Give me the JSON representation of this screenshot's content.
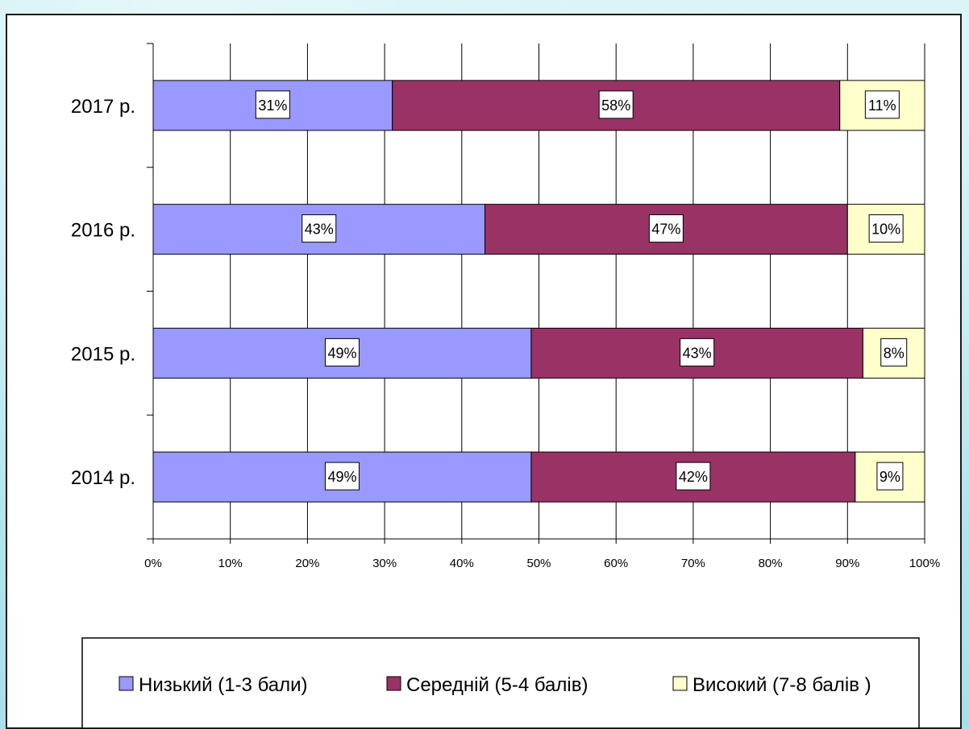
{
  "chart_data": {
    "type": "bar",
    "orientation": "horizontal",
    "stacked": "percent",
    "categories": [
      "2017 р.",
      "2016 р.",
      "2015 р.",
      "2014 р."
    ],
    "series": [
      {
        "name": "Низький (1-3 бали)",
        "color": "#9999ff",
        "values": [
          31,
          43,
          49,
          49
        ],
        "labels": [
          "31%",
          "43%",
          "49%",
          "49%"
        ]
      },
      {
        "name": "Середній (5-4 балів)",
        "color": "#993366",
        "values": [
          58,
          47,
          43,
          42
        ],
        "labels": [
          "58%",
          "47%",
          "43%",
          "42%"
        ]
      },
      {
        "name": "Високий (7-8 балів )",
        "color": "#ffffcc",
        "values": [
          11,
          10,
          8,
          9
        ],
        "labels": [
          "11%",
          "10%",
          "8%",
          "9%"
        ]
      }
    ],
    "xlim": [
      0,
      100
    ],
    "xticks": [
      "0%",
      "10%",
      "20%",
      "30%",
      "40%",
      "50%",
      "60%",
      "70%",
      "80%",
      "90%",
      "100%"
    ],
    "grid": true,
    "legend": "bottom"
  }
}
